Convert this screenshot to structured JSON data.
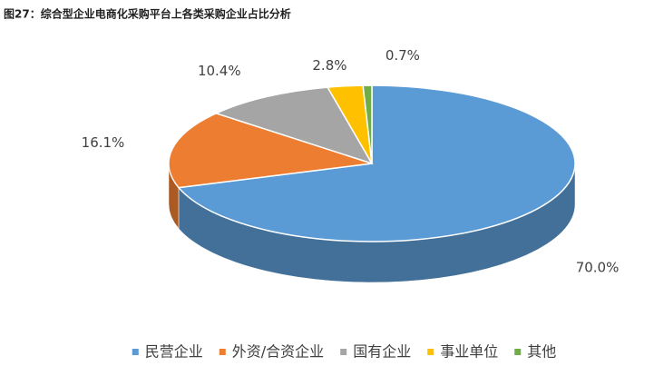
{
  "chart_data": {
    "type": "pie",
    "title": "图27：综合型企业电商化采购平台上各类采购企业占比分析",
    "categories": [
      "民营企业",
      "外资/合资企业",
      "国有企业",
      "事业单位",
      "其他"
    ],
    "values": [
      70.0,
      16.1,
      10.4,
      2.8,
      0.7
    ],
    "value_labels": [
      "70.0%",
      "16.1%",
      "10.4%",
      "2.8%",
      "0.7%"
    ],
    "colors": [
      "#5b9bd5",
      "#ed7d31",
      "#a5a5a5",
      "#ffc000",
      "#70ad47"
    ],
    "legend": "bottom"
  }
}
